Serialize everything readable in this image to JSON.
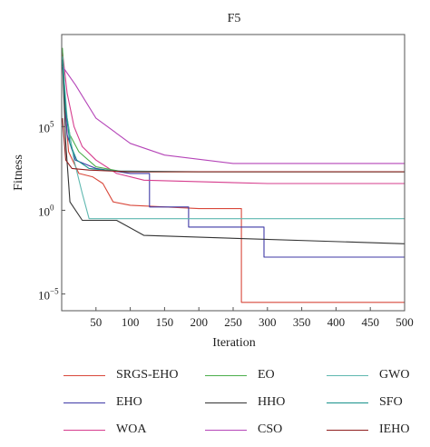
{
  "chart_data": {
    "type": "line",
    "title": "F5",
    "xlabel": "Iteration",
    "ylabel": "Fitness",
    "xlim": [
      0,
      500
    ],
    "ylog": true,
    "ylim_log10": [
      -6,
      10.5
    ],
    "x_ticks": [
      50,
      100,
      150,
      200,
      250,
      300,
      350,
      400,
      450,
      500
    ],
    "y_ticks": [
      {
        "exp": 5,
        "label": "10",
        "sup": "5"
      },
      {
        "exp": 0,
        "label": "10",
        "sup": "0"
      },
      {
        "exp": -5,
        "label": "10",
        "sup": "−5"
      }
    ],
    "series": [
      {
        "name": "SRGS-EHO",
        "color": "#d9483b",
        "points": [
          [
            1,
            9.3
          ],
          [
            5,
            6
          ],
          [
            10,
            3.5
          ],
          [
            25,
            2.2
          ],
          [
            45,
            2
          ],
          [
            60,
            1.6
          ],
          [
            75,
            0.5
          ],
          [
            100,
            0.3
          ],
          [
            200,
            0.1
          ],
          [
            262,
            0.1
          ],
          [
            262,
            -5.5
          ],
          [
            500,
            -5.5
          ]
        ]
      },
      {
        "name": "EHO",
        "color": "#3f3aa6",
        "points": [
          [
            1,
            9
          ],
          [
            8,
            4.5
          ],
          [
            20,
            3
          ],
          [
            50,
            2.5
          ],
          [
            100,
            2.2
          ],
          [
            128,
            2.2
          ],
          [
            128,
            0.2
          ],
          [
            185,
            0.2
          ],
          [
            185,
            -1
          ],
          [
            295,
            -1
          ],
          [
            295,
            -2.8
          ],
          [
            500,
            -2.8
          ]
        ]
      },
      {
        "name": "WOA",
        "color": "#d63c8d",
        "points": [
          [
            1,
            9.5
          ],
          [
            8,
            7
          ],
          [
            18,
            5
          ],
          [
            30,
            3.8
          ],
          [
            50,
            3
          ],
          [
            80,
            2.2
          ],
          [
            120,
            1.8
          ],
          [
            300,
            1.6
          ],
          [
            500,
            1.6
          ]
        ]
      },
      {
        "name": "EO",
        "color": "#4cae4c",
        "points": [
          [
            1,
            9.7
          ],
          [
            6,
            6
          ],
          [
            12,
            4.5
          ],
          [
            25,
            3.5
          ],
          [
            50,
            2.6
          ],
          [
            90,
            2.3
          ],
          [
            200,
            2.3
          ],
          [
            500,
            2.3
          ]
        ]
      },
      {
        "name": "HHO",
        "color": "#333333",
        "points": [
          [
            1,
            9
          ],
          [
            6,
            4
          ],
          [
            12,
            0.5
          ],
          [
            30,
            -0.6
          ],
          [
            80,
            -0.6
          ],
          [
            120,
            -1.5
          ],
          [
            500,
            -2
          ]
        ]
      },
      {
        "name": "CSO",
        "color": "#b545b8",
        "points": [
          [
            1,
            8.6
          ],
          [
            20,
            7.5
          ],
          [
            50,
            5.5
          ],
          [
            100,
            4
          ],
          [
            150,
            3.3
          ],
          [
            250,
            2.8
          ],
          [
            500,
            2.8
          ]
        ]
      },
      {
        "name": "GWO",
        "color": "#5fb8b0",
        "points": [
          [
            1,
            9.2
          ],
          [
            8,
            5.5
          ],
          [
            18,
            3
          ],
          [
            30,
            1
          ],
          [
            40,
            -0.5
          ],
          [
            80,
            -0.5
          ],
          [
            200,
            -0.5
          ],
          [
            500,
            -0.5
          ]
        ]
      },
      {
        "name": "SFO",
        "color": "#16918a",
        "points": [
          [
            1,
            9
          ],
          [
            6,
            6
          ],
          [
            12,
            4
          ],
          [
            22,
            3
          ],
          [
            40,
            2.5
          ],
          [
            80,
            2.35
          ],
          [
            200,
            2.3
          ],
          [
            500,
            2.3
          ]
        ]
      },
      {
        "name": "IEHO",
        "color": "#8f1d1d",
        "points": [
          [
            1,
            5.5
          ],
          [
            6,
            3
          ],
          [
            15,
            2.5
          ],
          [
            40,
            2.4
          ],
          [
            100,
            2.3
          ],
          [
            500,
            2.3
          ]
        ]
      }
    ]
  }
}
